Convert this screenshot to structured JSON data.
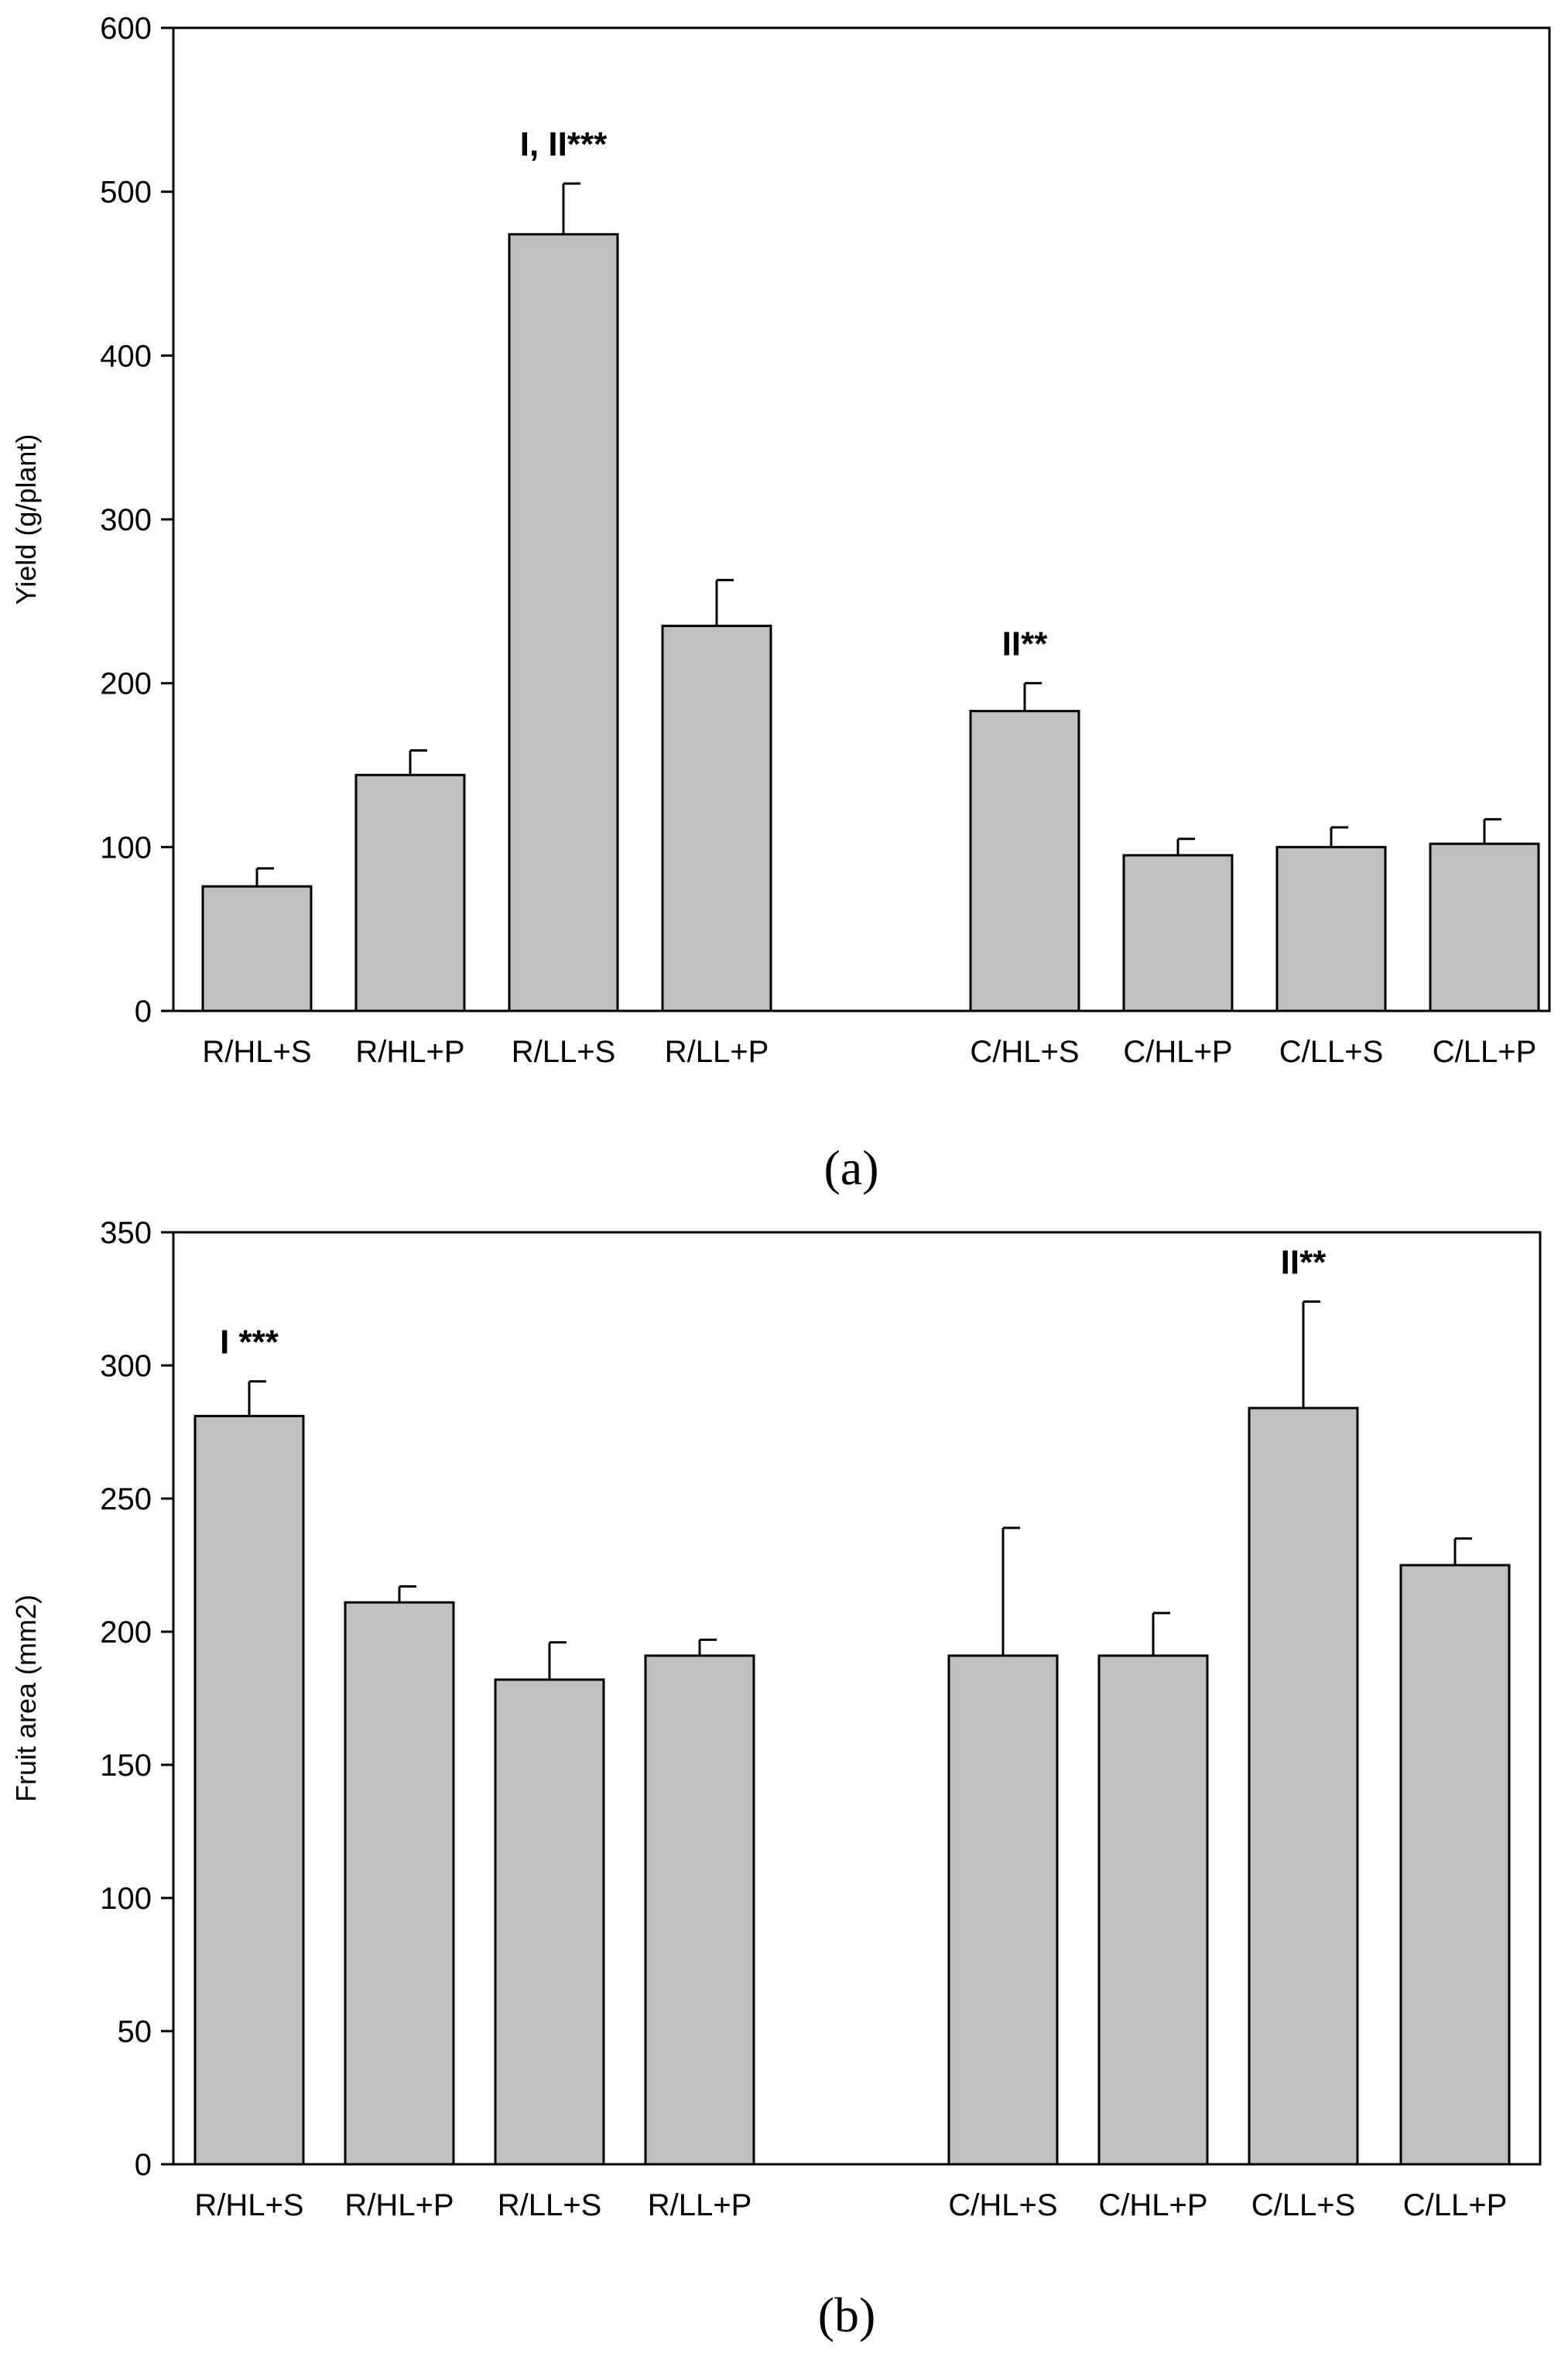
{
  "colors": {
    "bar_fill": "#c0c0c0",
    "bar_stroke": "#000000",
    "axis": "#000000"
  },
  "chart_data": [
    {
      "type": "bar",
      "panel_label": "(a)",
      "title": "",
      "xlabel": "",
      "ylabel": "Yield (g/plant)",
      "ylim": [
        0,
        600
      ],
      "ytick_step": 100,
      "yticks": [
        "0",
        "100",
        "200",
        "300",
        "400",
        "500",
        "600"
      ],
      "grid": false,
      "categories": [
        "R/HL+S",
        "R/HL+P",
        "R/LL+S",
        "R/LL+P",
        "C/HL+S",
        "C/HL+P",
        "C/LL+S",
        "C/LL+P"
      ],
      "values": [
        76,
        144,
        474,
        235,
        183,
        95,
        100,
        102
      ],
      "errors": [
        11,
        15,
        31,
        28,
        17,
        10,
        12,
        15
      ],
      "annotations": [
        {
          "category_index": 2,
          "text": "I, II***"
        },
        {
          "category_index": 4,
          "text": "II**"
        }
      ]
    },
    {
      "type": "bar",
      "panel_label": "(b)",
      "title": "",
      "xlabel": "",
      "ylabel": "Fruit area (mm2)",
      "ylim": [
        0,
        350
      ],
      "ytick_step": 50,
      "yticks": [
        "0",
        "50",
        "100",
        "150",
        "200",
        "250",
        "300",
        "350"
      ],
      "grid": false,
      "categories": [
        "R/HL+S",
        "R/HL+P",
        "R/LL+S",
        "R/LL+P",
        "C/HL+S",
        "C/HL+P",
        "C/LL+S",
        "C/LL+P"
      ],
      "values": [
        281,
        211,
        182,
        191,
        191,
        191,
        284,
        225
      ],
      "errors": [
        13,
        6,
        14,
        6,
        48,
        16,
        40,
        10
      ],
      "annotations": [
        {
          "category_index": 0,
          "text": "I ***"
        },
        {
          "category_index": 6,
          "text": "II**"
        }
      ]
    }
  ]
}
